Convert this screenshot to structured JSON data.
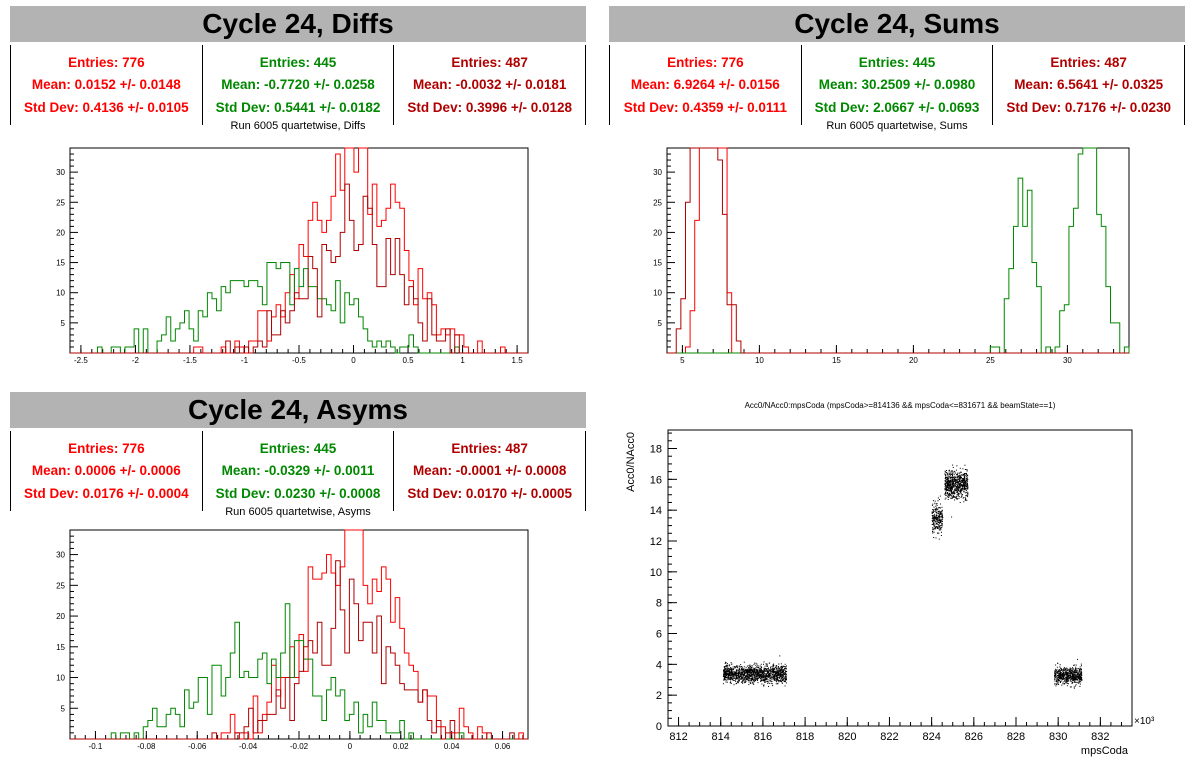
{
  "colors": {
    "red": "#ff0000",
    "green": "#008800",
    "darkred": "#b00000",
    "title_bg": "#b3b3b3"
  },
  "panels": [
    {
      "id": "diffs",
      "title": "Cycle 24, Diffs",
      "stats": [
        {
          "entries": "Entries: 776",
          "mean": "Mean: 0.0152 +/- 0.0148",
          "std": "Std Dev: 0.4136 +/- 0.0105",
          "color": "#ff0000"
        },
        {
          "entries": "Entries: 445",
          "mean": "Mean: -0.7720 +/- 0.0258",
          "std": "Std Dev: 0.5441 +/- 0.0182",
          "color": "#008800"
        },
        {
          "entries": "Entries: 487",
          "mean": "Mean: -0.0032 +/- 0.0181",
          "std": "Std Dev: 0.3996 +/- 0.0128",
          "color": "#b00000"
        }
      ],
      "subtitle": "Run 6005 quartetwise, Diffs"
    },
    {
      "id": "sums",
      "title": "Cycle 24, Sums",
      "stats": [
        {
          "entries": "Entries: 776",
          "mean": "Mean: 6.9264 +/- 0.0156",
          "std": "Std Dev: 0.4359 +/- 0.0111",
          "color": "#ff0000"
        },
        {
          "entries": "Entries: 445",
          "mean": "Mean: 30.2509 +/- 0.0980",
          "std": "Std Dev: 2.0667 +/- 0.0693",
          "color": "#008800"
        },
        {
          "entries": "Entries: 487",
          "mean": "Mean: 6.5641 +/- 0.0325",
          "std": "Std Dev: 0.7176 +/- 0.0230",
          "color": "#b00000"
        }
      ],
      "subtitle": "Run 6005 quartetwise, Sums"
    },
    {
      "id": "asyms",
      "title": "Cycle 24, Asyms",
      "stats": [
        {
          "entries": "Entries: 776",
          "mean": "Mean: 0.0006 +/- 0.0006",
          "std": "Std Dev: 0.0176 +/- 0.0004",
          "color": "#ff0000"
        },
        {
          "entries": "Entries: 445",
          "mean": "Mean: -0.0329 +/- 0.0011",
          "std": "Std Dev: 0.0230 +/- 0.0008",
          "color": "#008800"
        },
        {
          "entries": "Entries: 487",
          "mean": "Mean: -0.0001 +/- 0.0008",
          "std": "Std Dev: 0.0170 +/- 0.0005",
          "color": "#b00000"
        }
      ],
      "subtitle": "Run 6005 quartetwise, Asyms"
    }
  ],
  "chart_data": [
    {
      "type": "histogram",
      "id": "diffs",
      "title": "Run 6005 quartetwise, Diffs",
      "xlim": [
        -2.6,
        1.6
      ],
      "ylim": [
        0,
        34
      ],
      "xticks": [
        "-2.5",
        "-2",
        "-1.5",
        "-1",
        "-0.5",
        "0",
        "0.5",
        "1",
        "1.5"
      ],
      "xtick_values": [
        -2.5,
        -2,
        -1.5,
        -1,
        -0.5,
        0,
        0.5,
        1,
        1.5
      ],
      "yticks": [
        "5",
        "10",
        "15",
        "20",
        "25",
        "30"
      ],
      "ytick_values": [
        5,
        10,
        15,
        20,
        25,
        30
      ],
      "series": [
        {
          "color": "#ff0000",
          "mean": 0.0152,
          "std": 0.4136,
          "entries": 776
        },
        {
          "color": "#008800",
          "mean": -0.772,
          "std": 0.5441,
          "entries": 445
        },
        {
          "color": "#b00000",
          "mean": -0.0032,
          "std": 0.3996,
          "entries": 487
        }
      ]
    },
    {
      "type": "histogram",
      "id": "sums",
      "title": "Run 6005 quartetwise, Sums",
      "xlim": [
        4,
        34
      ],
      "ylim": [
        0,
        34
      ],
      "xticks": [
        "5",
        "10",
        "15",
        "20",
        "25",
        "30"
      ],
      "xtick_values": [
        5,
        10,
        15,
        20,
        25,
        30
      ],
      "yticks": [
        "5",
        "10",
        "15",
        "20",
        "25",
        "30"
      ],
      "ytick_values": [
        5,
        10,
        15,
        20,
        25,
        30
      ],
      "series": [
        {
          "color": "#ff0000",
          "mean": 6.9264,
          "std": 0.4359,
          "entries": 776
        },
        {
          "color": "#008800",
          "mean": 30.2509,
          "std": 2.0667,
          "entries": 445
        },
        {
          "color": "#b00000",
          "mean": 6.5641,
          "std": 0.7176,
          "entries": 487
        }
      ]
    },
    {
      "type": "histogram",
      "id": "asyms",
      "title": "Run 6005 quartetwise, Asyms",
      "xlim": [
        -0.11,
        0.07
      ],
      "ylim": [
        0,
        34
      ],
      "xticks": [
        "-0.1",
        "-0.08",
        "-0.06",
        "-0.04",
        "-0.02",
        "0",
        "0.02",
        "0.04",
        "0.06"
      ],
      "xtick_values": [
        -0.1,
        -0.08,
        -0.06,
        -0.04,
        -0.02,
        0,
        0.02,
        0.04,
        0.06
      ],
      "yticks": [
        "5",
        "10",
        "15",
        "20",
        "25",
        "30"
      ],
      "ytick_values": [
        5,
        10,
        15,
        20,
        25,
        30
      ],
      "series": [
        {
          "color": "#ff0000",
          "mean": 0.0006,
          "std": 0.0176,
          "entries": 776
        },
        {
          "color": "#008800",
          "mean": -0.0329,
          "std": 0.023,
          "entries": 445
        },
        {
          "color": "#b00000",
          "mean": -0.0001,
          "std": 0.017,
          "entries": 487
        }
      ]
    },
    {
      "type": "scatter",
      "id": "acc0",
      "title": "Acc0/NAcc0:mpsCoda (mpsCoda>=814136 && mpsCoda<=831671 && beamState==1)",
      "xlabel": "mpsCoda",
      "ylabel": "Acc0/NAcc0",
      "x_multiplier": "×10³",
      "xlim": [
        811.5,
        833.5
      ],
      "ylim": [
        0,
        19.2
      ],
      "xticks": [
        "812",
        "814",
        "816",
        "818",
        "820",
        "822",
        "824",
        "826",
        "828",
        "830",
        "832"
      ],
      "xtick_values": [
        812,
        814,
        816,
        818,
        820,
        822,
        824,
        826,
        828,
        830,
        832
      ],
      "yticks": [
        "0",
        "2",
        "4",
        "6",
        "8",
        "10",
        "12",
        "14",
        "16",
        "18"
      ],
      "ytick_values": [
        0,
        2,
        4,
        6,
        8,
        10,
        12,
        14,
        16,
        18
      ],
      "clusters": [
        {
          "x_range": [
            814.1,
            817.1
          ],
          "y_center": 3.4,
          "y_spread": 0.5,
          "count": 1400
        },
        {
          "x_range": [
            824.0,
            824.5
          ],
          "y_center": 13.5,
          "y_spread": 0.9,
          "count": 250
        },
        {
          "x_range": [
            824.6,
            825.7
          ],
          "y_center": 15.7,
          "y_spread": 0.8,
          "count": 700
        },
        {
          "x_range": [
            829.8,
            831.1
          ],
          "y_center": 3.3,
          "y_spread": 0.5,
          "count": 600
        }
      ]
    }
  ]
}
